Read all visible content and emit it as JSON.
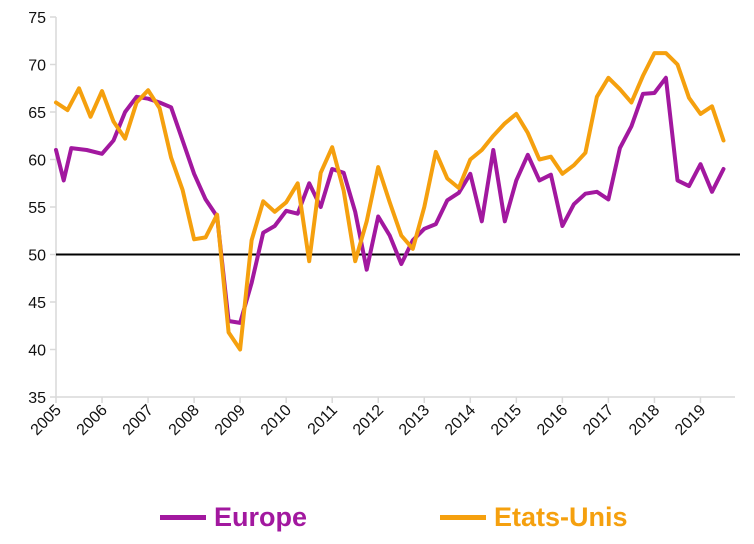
{
  "chart_data": {
    "type": "line",
    "title": "",
    "xlabel": "",
    "ylabel": "",
    "ylim": [
      35,
      75
    ],
    "yticks": [
      35,
      40,
      45,
      50,
      55,
      60,
      65,
      70,
      75
    ],
    "xlim": [
      2005,
      2019.75
    ],
    "xticks": [
      "2005",
      "2006",
      "2007",
      "2008",
      "2009",
      "2010",
      "2011",
      "2012",
      "2013",
      "2014",
      "2015",
      "2016",
      "2017",
      "2018",
      "2019"
    ],
    "reference_line": 50,
    "grid": false,
    "legend_position": "bottom",
    "series": [
      {
        "name": "Europe",
        "color": "#a2189f",
        "x": [
          2005,
          2005.167,
          2005.333,
          2005.667,
          2006,
          2006.25,
          2006.5,
          2006.75,
          2007,
          2007.25,
          2007.5,
          2007.75,
          2008,
          2008.25,
          2008.5,
          2008.75,
          2009,
          2009.25,
          2009.5,
          2009.75,
          2010,
          2010.25,
          2010.5,
          2010.75,
          2011,
          2011.25,
          2011.5,
          2011.75,
          2012,
          2012.25,
          2012.5,
          2012.75,
          2013,
          2013.25,
          2013.5,
          2013.75,
          2014,
          2014.25,
          2014.5,
          2014.75,
          2015,
          2015.25,
          2015.5,
          2015.75,
          2016,
          2016.25,
          2016.5,
          2016.75,
          2017,
          2017.25,
          2017.5,
          2017.75,
          2018,
          2018.25,
          2018.5,
          2018.75,
          2019,
          2019.25,
          2019.5
        ],
        "y": [
          61,
          57.8,
          61.2,
          61,
          60.6,
          62,
          65,
          66.6,
          66.4,
          66,
          65.5,
          62,
          58.5,
          55.8,
          54,
          43,
          42.8,
          47,
          52.3,
          53,
          54.6,
          54.3,
          57.5,
          55,
          59,
          58.6,
          54.5,
          48.4,
          54,
          52,
          49,
          51.5,
          52.7,
          53.2,
          55.7,
          56.5,
          58.5,
          53.5,
          61,
          53.5,
          57.8,
          60.5,
          57.8,
          58.4,
          53,
          55.3,
          56.4,
          56.6,
          55.8,
          61.2,
          63.5,
          66.9,
          67,
          68.6,
          57.8,
          57.2,
          59.5,
          56.6,
          59
        ]
      },
      {
        "name": "Etats-Unis",
        "color": "#f5a00e",
        "x": [
          2005,
          2005.25,
          2005.5,
          2005.75,
          2006,
          2006.25,
          2006.5,
          2006.75,
          2007,
          2007.25,
          2007.5,
          2007.75,
          2008,
          2008.25,
          2008.5,
          2008.75,
          2009,
          2009.25,
          2009.5,
          2009.75,
          2010,
          2010.25,
          2010.5,
          2010.75,
          2011,
          2011.25,
          2011.5,
          2011.75,
          2012,
          2012.25,
          2012.5,
          2012.75,
          2013,
          2013.25,
          2013.5,
          2013.75,
          2014,
          2014.25,
          2014.5,
          2014.75,
          2015,
          2015.25,
          2015.5,
          2015.75,
          2016,
          2016.25,
          2016.5,
          2016.75,
          2017,
          2017.25,
          2017.5,
          2017.75,
          2018,
          2018.25,
          2018.5,
          2018.75,
          2019,
          2019.25,
          2019.5
        ],
        "y": [
          66,
          65.2,
          67.5,
          64.5,
          67.2,
          64,
          62.2,
          66,
          67.3,
          65.4,
          60.2,
          56.8,
          51.6,
          51.8,
          54.2,
          41.8,
          40,
          51.5,
          55.6,
          54.5,
          55.5,
          57.5,
          49.3,
          58.6,
          61.3,
          56.7,
          49.3,
          53.5,
          59.2,
          55.5,
          52,
          50.6,
          55,
          60.8,
          58,
          57,
          60,
          61,
          62.5,
          63.8,
          64.8,
          62.8,
          60,
          60.3,
          58.5,
          59.4,
          60.7,
          66.6,
          68.6,
          67.4,
          66,
          68.8,
          71.2,
          71.2,
          70,
          66.5,
          64.8,
          65.6,
          62
        ]
      }
    ]
  }
}
